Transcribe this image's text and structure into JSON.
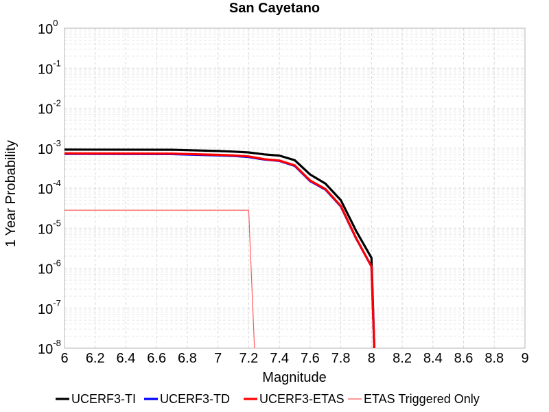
{
  "chart_data": {
    "type": "line",
    "title": "San Cayetano",
    "xlabel": "Magnitude",
    "ylabel": "1 Year Probability",
    "xlim": [
      6,
      9
    ],
    "ylim": [
      1e-08,
      1
    ],
    "yscale": "log",
    "grid": true,
    "legend_position": "bottom",
    "x_ticks": [
      "6",
      "6.2",
      "6.4",
      "6.6",
      "6.8",
      "7",
      "7.2",
      "7.4",
      "7.6",
      "7.8",
      "8",
      "8.2",
      "8.4",
      "8.6",
      "8.8",
      "9"
    ],
    "y_ticks": [
      {
        "base": "10",
        "exp": "0",
        "value": 1
      },
      {
        "base": "10",
        "exp": "-1",
        "value": 0.1
      },
      {
        "base": "10",
        "exp": "-2",
        "value": 0.01
      },
      {
        "base": "10",
        "exp": "-3",
        "value": 0.001
      },
      {
        "base": "10",
        "exp": "-4",
        "value": 0.0001
      },
      {
        "base": "10",
        "exp": "-5",
        "value": 1e-05
      },
      {
        "base": "10",
        "exp": "-6",
        "value": 1e-06
      },
      {
        "base": "10",
        "exp": "-7",
        "value": 1e-07
      },
      {
        "base": "10",
        "exp": "-8",
        "value": 1e-08
      }
    ],
    "series": [
      {
        "name": "UCERF3-TI",
        "color": "#000000",
        "line_width": "thick",
        "points": [
          [
            6.0,
            0.00092
          ],
          [
            6.7,
            0.00091
          ],
          [
            7.0,
            0.00085
          ],
          [
            7.1,
            0.00082
          ],
          [
            7.2,
            0.00078
          ],
          [
            7.3,
            0.0007
          ],
          [
            7.4,
            0.00065
          ],
          [
            7.5,
            0.0005
          ],
          [
            7.6,
            0.00022
          ],
          [
            7.7,
            0.00013
          ],
          [
            7.8,
            5e-05
          ],
          [
            7.9,
            8.5e-06
          ],
          [
            8.0,
            1.8e-06
          ],
          [
            8.02,
            1e-09
          ]
        ]
      },
      {
        "name": "UCERF3-TD",
        "color": "#0000ff",
        "line_width": "thick",
        "points": [
          [
            6.0,
            0.00072
          ],
          [
            6.7,
            0.00071
          ],
          [
            7.0,
            0.00066
          ],
          [
            7.1,
            0.00064
          ],
          [
            7.2,
            0.0006
          ],
          [
            7.3,
            0.00052
          ],
          [
            7.4,
            0.00048
          ],
          [
            7.5,
            0.00036
          ],
          [
            7.6,
            0.00015
          ],
          [
            7.7,
            9.2e-05
          ],
          [
            7.8,
            3.5e-05
          ],
          [
            7.9,
            5.5e-06
          ],
          [
            8.0,
            1.1e-06
          ],
          [
            8.02,
            1e-09
          ]
        ]
      },
      {
        "name": "UCERF3-ETAS",
        "color": "#ff0000",
        "line_width": "thick",
        "points": [
          [
            6.0,
            0.00074
          ],
          [
            6.7,
            0.00073
          ],
          [
            7.0,
            0.00068
          ],
          [
            7.1,
            0.00066
          ],
          [
            7.2,
            0.00062
          ],
          [
            7.3,
            0.00053
          ],
          [
            7.4,
            0.00049
          ],
          [
            7.5,
            0.00037
          ],
          [
            7.6,
            0.000155
          ],
          [
            7.7,
            9.5e-05
          ],
          [
            7.8,
            3.6e-05
          ],
          [
            7.9,
            5.6e-06
          ],
          [
            8.0,
            1.1e-06
          ],
          [
            8.02,
            1e-09
          ]
        ]
      },
      {
        "name": "ETAS Triggered Only",
        "color": "#ff5a5a",
        "line_width": "thin",
        "points": [
          [
            6.0,
            2.8e-05
          ],
          [
            7.2,
            2.8e-05
          ],
          [
            7.24,
            1e-09
          ]
        ]
      }
    ]
  }
}
